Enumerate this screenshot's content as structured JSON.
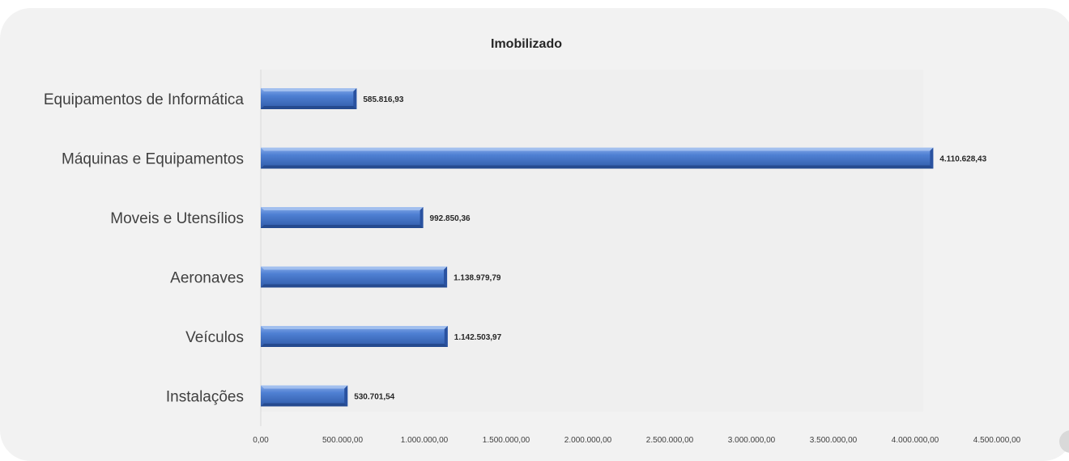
{
  "chart_data": {
    "type": "bar",
    "orientation": "horizontal",
    "title": "Imobilizado",
    "categories": [
      "Equipamentos de Informática",
      "Máquinas e Equipamentos",
      "Moveis e Utensílios",
      "Aeronaves",
      "Veículos",
      "Instalações"
    ],
    "values": [
      585816.93,
      4110628.43,
      992850.36,
      1138979.79,
      1142503.97,
      530701.54
    ],
    "value_labels": [
      "585.816,93",
      "4.110.628,43",
      "992.850,36",
      "1.138.979,79",
      "1.142.503,97",
      "530.701,54"
    ],
    "xlim": [
      0,
      4500000
    ],
    "x_ticks": [
      "0,00",
      "500.000,00",
      "1.000.000,00",
      "1.500.000,00",
      "2.000.000,00",
      "2.500.000,00",
      "3.000.000,00",
      "3.500.000,00",
      "4.000.000,00",
      "4.500.000,00"
    ],
    "grid": false,
    "legend": "none",
    "colors": {
      "bar": "#4a7bd0",
      "bar_light": "#7ea6e8",
      "bar_dark": "#2f5aa8",
      "plot_bg": "#efefef",
      "axis": "#d9d9d9",
      "label": "#262626"
    }
  }
}
